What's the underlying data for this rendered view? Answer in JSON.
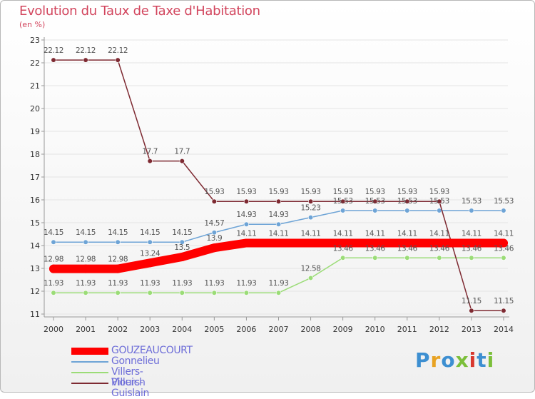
{
  "chart_data": {
    "type": "line",
    "title": "Evolution du Taux de Taxe d'Habitation",
    "subtitle": "(en %)",
    "x": [
      "2000",
      "2001",
      "2002",
      "2003",
      "2004",
      "2005",
      "2006",
      "2007",
      "2008",
      "2009",
      "2010",
      "2011",
      "2012",
      "2013",
      "2014"
    ],
    "ylim": [
      11,
      23
    ],
    "yticks": [
      "11",
      "12",
      "13",
      "14",
      "15",
      "16",
      "17",
      "18",
      "19",
      "20",
      "21",
      "22",
      "23"
    ],
    "series": [
      {
        "name": "Villers-Plouich",
        "color": "#9bdc77",
        "values": [
          11.93,
          11.93,
          11.93,
          11.93,
          11.93,
          11.93,
          11.93,
          11.93,
          12.58,
          13.46,
          13.46,
          13.46,
          13.46,
          13.46,
          13.46
        ],
        "labels": [
          "11.93",
          "11.93",
          "11.93",
          "11.93",
          "11.93",
          "11.93",
          "11.93",
          "11.93",
          "12.58",
          "13.46",
          "13.46",
          "13.46",
          "13.46",
          "13.46",
          "13.46"
        ]
      },
      {
        "name": "Gonnelieu",
        "color": "#6ea4d6",
        "values": [
          14.15,
          14.15,
          14.15,
          14.15,
          14.15,
          14.57,
          14.93,
          14.93,
          15.23,
          15.53,
          15.53,
          15.53,
          15.53,
          15.53,
          15.53
        ],
        "labels": [
          "14.15",
          "14.15",
          "14.15",
          "14.15",
          "14.15",
          "14.57",
          "14.93",
          "14.93",
          "15.23",
          "15.53",
          "15.53",
          "15.53",
          "15.53",
          "15.53",
          "15.53"
        ]
      },
      {
        "name": "Villers-Guislain",
        "color": "#7e2a32",
        "values": [
          22.12,
          22.12,
          22.12,
          17.7,
          17.7,
          15.93,
          15.93,
          15.93,
          15.93,
          15.93,
          15.93,
          15.93,
          15.93,
          11.15,
          11.15
        ],
        "labels": [
          "22.12",
          "22.12",
          "22.12",
          "17.7",
          "17.7",
          "15.93",
          "15.93",
          "15.93",
          "15.93",
          "15.93",
          "15.93",
          "15.93",
          "15.93",
          "11.15",
          "11.15"
        ]
      },
      {
        "name": "GOUZEAUCOURT",
        "color": "#ff0000",
        "values": [
          12.98,
          12.98,
          12.98,
          13.24,
          13.5,
          13.9,
          14.11,
          14.11,
          14.11,
          14.11,
          14.11,
          14.11,
          14.11,
          14.11,
          14.11
        ],
        "labels": [
          "12.98",
          "12.98",
          "12.98",
          "13.24",
          "13.5",
          "13.9",
          "14.11",
          "14.11",
          "14.11",
          "14.11",
          "14.11",
          "14.11",
          "14.11",
          "14.11",
          "14.11"
        ]
      }
    ],
    "legend": [
      "GOUZEAUCOURT",
      "Gonnelieu",
      "Villers-Plouich",
      "Villers-Guislain"
    ],
    "legend_position": "bottom-left"
  },
  "logo": {
    "text": "Proxiti",
    "colors": [
      "#3d8fd1",
      "#e8a323",
      "#3d8fd1",
      "#7bbf3a",
      "#d8382e",
      "#3d8fd1",
      "#7bbf3a"
    ]
  }
}
